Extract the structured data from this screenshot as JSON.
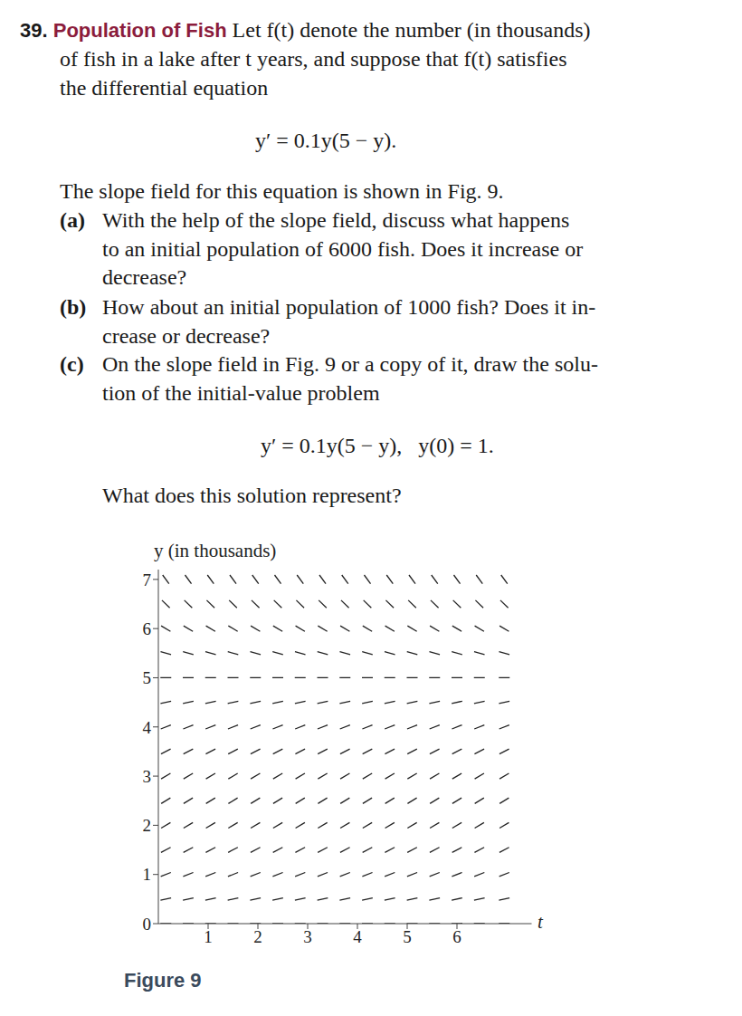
{
  "problem": {
    "number": "39.",
    "title": "Population of Fish",
    "intro": [
      "Let f(t) denote the number (in thousands)",
      "of fish in a lake after t years, and suppose that f(t) satisfies",
      "the differential equation"
    ],
    "equation": "y′ = 0.1y(5 − y).",
    "after_equation": "The slope field for this equation is shown in Fig. 9.",
    "parts": [
      {
        "label": "(a)",
        "lines": [
          "With the help of the slope field, discuss what happens",
          "to an initial population of 6000 fish. Does it increase or",
          "decrease?"
        ]
      },
      {
        "label": "(b)",
        "lines": [
          "How about an initial population of 1000 fish? Does it in-",
          "crease or decrease?"
        ]
      },
      {
        "label": "(c)",
        "lines": [
          "On the slope field in Fig. 9 or a copy of it, draw the solu-",
          "tion of the initial-value problem"
        ],
        "equation": "y′ = 0.1y(5 − y),   y(0) = 1.",
        "after": "What does this solution represent?"
      }
    ]
  },
  "chart_data": {
    "type": "slope_field",
    "caption": "Figure 9",
    "x_label": "t",
    "y_label": "y (in thousands)",
    "xlim": [
      0,
      7.5
    ],
    "ylim": [
      0,
      7.2
    ],
    "xticks": [
      1,
      2,
      3,
      4,
      5,
      6
    ],
    "yticks": [
      0,
      1,
      2,
      3,
      4,
      5,
      6,
      7
    ],
    "x": [
      0.15,
      0.6,
      1.05,
      1.5,
      1.95,
      2.4,
      2.85,
      3.3,
      3.75,
      4.2,
      4.65,
      5.1,
      5.55,
      6.0,
      6.45,
      6.95
    ],
    "y": [
      0,
      0.5,
      1,
      1.5,
      2,
      2.5,
      3,
      3.5,
      4,
      4.5,
      5,
      5.5,
      6,
      6.5,
      7
    ],
    "slopes": [
      0,
      0.225,
      0.4,
      0.525,
      0.6,
      0.625,
      0.6,
      0.525,
      0.4,
      0.225,
      0,
      -0.275,
      -0.6,
      -0.975,
      -1.4
    ],
    "color": "#222222",
    "grid": false
  }
}
